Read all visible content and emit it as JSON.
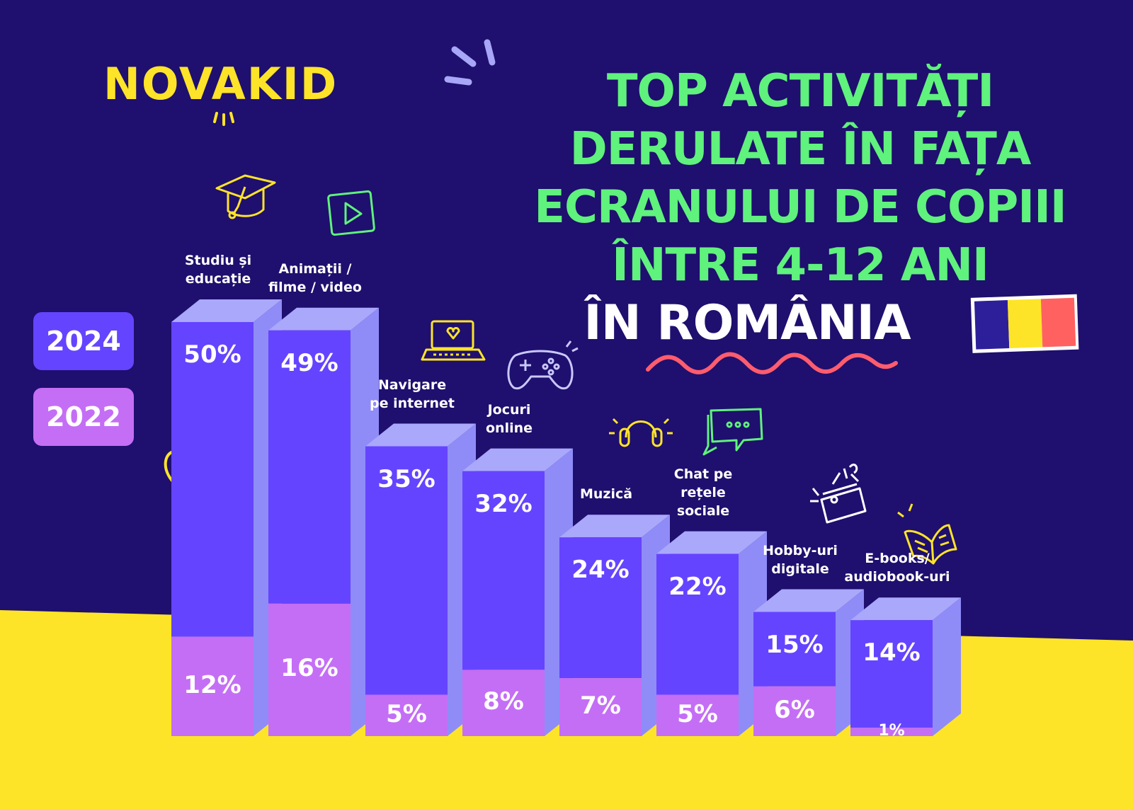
{
  "brand": {
    "logo_text": "NOVAKID"
  },
  "title": {
    "line1": "TOP ACTIVITĂȚI",
    "line2": "DERULATE ÎN FAȚA",
    "line3": "ECRANULUI DE COPIII",
    "line4": "ÎNTRE 4-12 ANI",
    "line5": "ÎN ROMÂNIA"
  },
  "colors": {
    "background": "#1f0f6e",
    "ground": "#fde428",
    "bar_2024": "#6544ff",
    "bar_2022": "#c46ef5",
    "bar_side": "#8f8cf8",
    "bar_top": "#aaa8fb",
    "title": "#5ff27c",
    "flag_blue": "#2d1f9a",
    "flag_yellow": "#fde428",
    "flag_red": "#ff6161"
  },
  "icons": [
    "graduation-cap-icon",
    "play-video-icon",
    "laptop-icon",
    "gamepad-icon",
    "headphones-icon",
    "chat-bubbles-icon",
    "hobby-box-icon",
    "open-book-icon",
    "trophy-icon",
    "romania-flag-icon"
  ],
  "chart_data": {
    "type": "bar",
    "stacked": true,
    "categories": [
      "Studiu și\neducație",
      "Animații /\nfilme / video",
      "Navigare\npe internet",
      "Jocuri\nonline",
      "Muzică",
      "Chat pe\nrețele\nsociale",
      "Hobby-uri\ndigitale",
      "E-books/\naudiobook-uri"
    ],
    "series": [
      {
        "name": "2024",
        "values": [
          50,
          49,
          35,
          32,
          24,
          22,
          15,
          14
        ]
      },
      {
        "name": "2022",
        "values": [
          12,
          16,
          5,
          8,
          7,
          5,
          6,
          1
        ]
      }
    ],
    "value_labels_2024": [
      "50%",
      "49%",
      "35%",
      "32%",
      "24%",
      "22%",
      "15%",
      "14%"
    ],
    "value_labels_2022": [
      "12%",
      "16%",
      "5%",
      "8%",
      "7%",
      "5%",
      "6%",
      "1%"
    ],
    "title": "",
    "xlabel": "",
    "ylabel": "",
    "legend": "left"
  }
}
